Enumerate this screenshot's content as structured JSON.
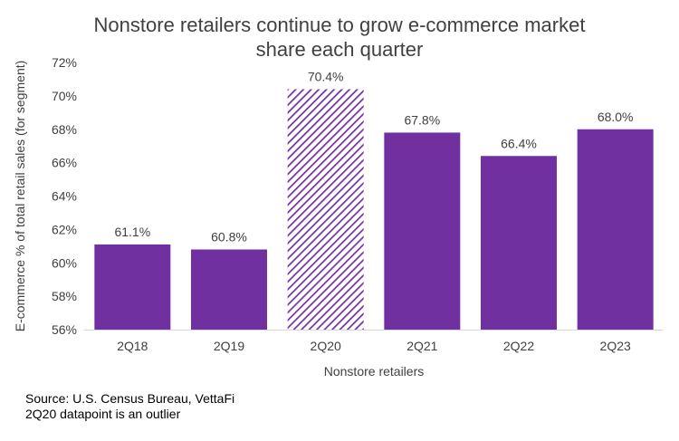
{
  "chart_data": {
    "type": "bar",
    "title_lines": [
      "Nonstore retailers continue to grow e-commerce market",
      "share each quarter"
    ],
    "categories": [
      "2Q18",
      "2Q19",
      "2Q20",
      "2Q21",
      "2Q22",
      "2Q23"
    ],
    "values": [
      61.1,
      60.8,
      70.4,
      67.8,
      66.4,
      68.0
    ],
    "data_labels": [
      "61.1%",
      "60.8%",
      "70.4%",
      "67.8%",
      "66.4%",
      "68.0%"
    ],
    "hatched": [
      false,
      false,
      true,
      false,
      false,
      false
    ],
    "xlabel": "Nonstore retailers",
    "ylabel": "E-commerce % of total retail sales (for segment)",
    "ylim": [
      56,
      72
    ],
    "yticks": [
      56,
      58,
      60,
      62,
      64,
      66,
      68,
      70,
      72
    ],
    "ytick_labels": [
      "56%",
      "58%",
      "60%",
      "62%",
      "64%",
      "66%",
      "68%",
      "70%",
      "72%"
    ],
    "grid": false,
    "legend": "none",
    "bar_color": "#7030A0"
  },
  "notes": {
    "source": "Source: U.S. Census Bureau, VettaFi",
    "outlier": "2Q20 datapoint is an outlier"
  }
}
